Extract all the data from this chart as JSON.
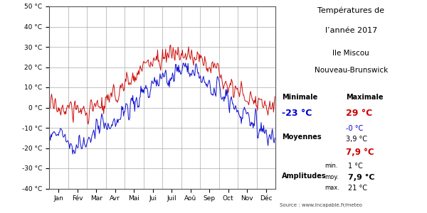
{
  "title_line1": "Températures de",
  "title_line2": "l’année 2017",
  "subtitle_line1": "Ile Miscou",
  "subtitle_line2": "Nouveau-Brunswick",
  "ylim": [
    -40,
    50
  ],
  "yticks": [
    -40,
    -30,
    -20,
    -10,
    0,
    10,
    20,
    30,
    40,
    50
  ],
  "months": [
    "Jan",
    "Fév",
    "Mar",
    "Avr",
    "Mai",
    "Jui",
    "Juil",
    "Aoû",
    "Sep",
    "Oct",
    "Nov",
    "Déc"
  ],
  "color_min": "#0000cc",
  "color_max": "#cc0000",
  "bg_color": "#ffffff",
  "grid_color": "#aaaaaa",
  "source": "Source : www.incapable.fr/meteo"
}
